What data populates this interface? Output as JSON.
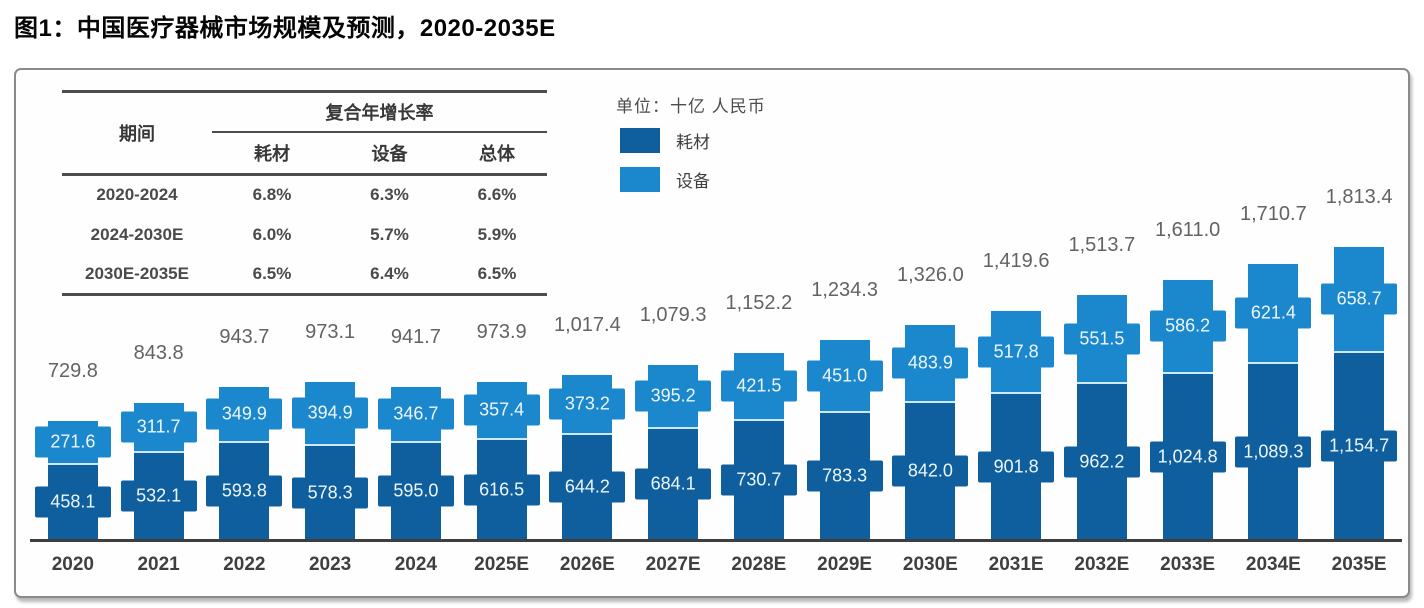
{
  "title": "图1：中国医疗器械市场规模及预测，2020-2035E",
  "cagr_table": {
    "period_header": "期间",
    "cagr_header": "复合年增长率",
    "sub_headers": [
      "耗材",
      "设备",
      "总体"
    ],
    "rows": [
      {
        "period": "2020-2024",
        "values": [
          "6.8%",
          "6.3%",
          "6.6%"
        ]
      },
      {
        "period": "2024-2030E",
        "values": [
          "6.0%",
          "5.7%",
          "5.9%"
        ]
      },
      {
        "period": "2030E-2035E",
        "values": [
          "6.5%",
          "6.4%",
          "6.5%"
        ]
      }
    ]
  },
  "legend": {
    "unit_label": "单位：十亿 人民币",
    "items": [
      {
        "label": "耗材",
        "color": "#0f5f9e"
      },
      {
        "label": "设备",
        "color": "#1b87cd"
      }
    ]
  },
  "chart_data": {
    "type": "bar",
    "stacked": true,
    "title": "中国医疗器械市场规模及预测，2020-2035E",
    "unit": "十亿人民币",
    "grid": false,
    "legend_position": "top-left",
    "categories": [
      "2020",
      "2021",
      "2022",
      "2023",
      "2024",
      "2025E",
      "2026E",
      "2027E",
      "2028E",
      "2029E",
      "2030E",
      "2031E",
      "2032E",
      "2033E",
      "2034E",
      "2035E"
    ],
    "series": [
      {
        "name": "耗材",
        "color": "#0f5f9e",
        "values": [
          458.1,
          532.1,
          593.8,
          578.3,
          595.0,
          616.5,
          644.2,
          684.1,
          730.7,
          783.3,
          842.0,
          901.8,
          962.2,
          1024.8,
          1089.3,
          1154.7
        ],
        "labels": [
          "458.1",
          "532.1",
          "593.8",
          "578.3",
          "595.0",
          "616.5",
          "644.2",
          "684.1",
          "730.7",
          "783.3",
          "842.0",
          "901.8",
          "962.2",
          "1,024.8",
          "1,089.3",
          "1,154.7"
        ]
      },
      {
        "name": "设备",
        "color": "#1b87cd",
        "values": [
          271.6,
          311.7,
          349.9,
          394.9,
          346.7,
          357.4,
          373.2,
          395.2,
          421.5,
          451.0,
          483.9,
          517.8,
          551.5,
          586.2,
          621.4,
          658.7
        ],
        "labels": [
          "271.6",
          "311.7",
          "349.9",
          "394.9",
          "346.7",
          "357.4",
          "373.2",
          "395.2",
          "421.5",
          "451.0",
          "483.9",
          "517.8",
          "551.5",
          "586.2",
          "621.4",
          "658.7"
        ]
      }
    ],
    "totals": [
      729.8,
      843.8,
      943.7,
      973.1,
      941.7,
      973.9,
      1017.4,
      1079.3,
      1152.2,
      1234.3,
      1326.0,
      1419.6,
      1513.7,
      1611.0,
      1710.7,
      1813.4
    ],
    "total_labels": [
      "729.8",
      "843.8",
      "943.7",
      "973.1",
      "941.7",
      "973.9",
      "1,017.4",
      "1,079.3",
      "1,152.2",
      "1,234.3",
      "1,326.0",
      "1,419.6",
      "1,513.7",
      "1,611.0",
      "1,710.7",
      "1,813.4"
    ]
  }
}
